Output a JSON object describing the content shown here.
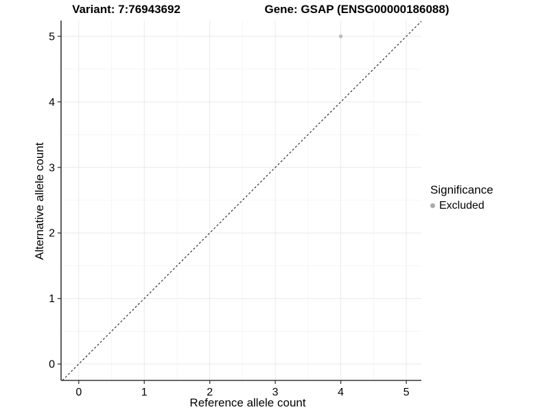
{
  "chart_data": {
    "type": "scatter",
    "title_left": "Variant: 7:76943692",
    "title_right": "Gene: GSAP (ENSG00000186088)",
    "xlabel": "Reference allele count",
    "ylabel": "Alternative allele count",
    "xlim": [
      -0.27,
      5.23
    ],
    "ylim": [
      -0.25,
      5.24
    ],
    "xticks": [
      0,
      1,
      2,
      3,
      4,
      5
    ],
    "yticks": [
      0,
      1,
      2,
      3,
      4,
      5
    ],
    "xminor": [
      0.5,
      1.5,
      2.5,
      3.5,
      4.5
    ],
    "yminor": [
      0.5,
      1.5,
      2.5,
      3.5,
      4.5
    ],
    "grid": "major+minor",
    "reference_line": {
      "type": "identity",
      "slope": 1,
      "intercept": 0,
      "style": "dashed"
    },
    "series": [
      {
        "name": "Excluded",
        "points": [
          {
            "x": 4,
            "y": 5
          }
        ]
      }
    ],
    "legend": {
      "title": "Significance",
      "position": "right",
      "entries": [
        {
          "label": "Excluded",
          "marker": "circle"
        }
      ]
    }
  },
  "colors": {
    "background": "#ffffff",
    "grid_major": "#e9e9e9",
    "grid_minor": "#f5f5f5",
    "axis_line": "#333333",
    "tick_mark": "#333333",
    "reference_line": "#1a1a1a",
    "point": "#bdbdbd",
    "legend_marker": "#aaaaaa",
    "text": "#000000"
  }
}
